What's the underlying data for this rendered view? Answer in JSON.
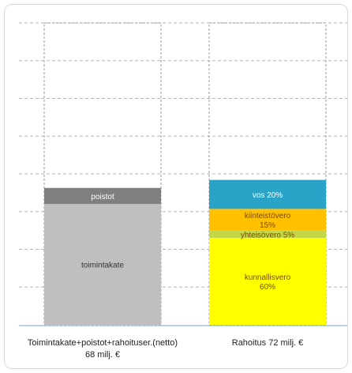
{
  "chart_data": {
    "type": "bar",
    "stacked": true,
    "grid": true,
    "categories": [
      "Toimintakate+poistot+rahoituser.(netto)|68 milj. €",
      "Rahoitus 72 milj. €"
    ],
    "ylim": [
      0,
      150
    ],
    "bars": [
      {
        "total_outline": 150,
        "segments": [
          {
            "label": "toimintakate",
            "value": 60,
            "color": "#bfbfbf"
          },
          {
            "label": "poistot",
            "value": 8,
            "color": "#7f7f7f"
          }
        ]
      },
      {
        "total_outline": 150,
        "segments": [
          {
            "label": "kunnallisvero\n60%",
            "value": 43.2,
            "color": "#ffff00"
          },
          {
            "label": "yhteisövero 5%",
            "value": 3.6,
            "color": "#c4d647"
          },
          {
            "label": "kiinteistövero\n15%",
            "value": 10.8,
            "color": "#ffc000"
          },
          {
            "label": "vos 20%",
            "value": 14.4,
            "color": "#2aa3c8"
          }
        ]
      }
    ],
    "title": "",
    "xlabel": "",
    "ylabel": ""
  },
  "colors": {
    "grid": "#b5b5b5",
    "outline": "#9a9a9a",
    "axis": "#9dc3e6",
    "label_dark": "#ffffff",
    "label_light": "#7a4a00"
  }
}
